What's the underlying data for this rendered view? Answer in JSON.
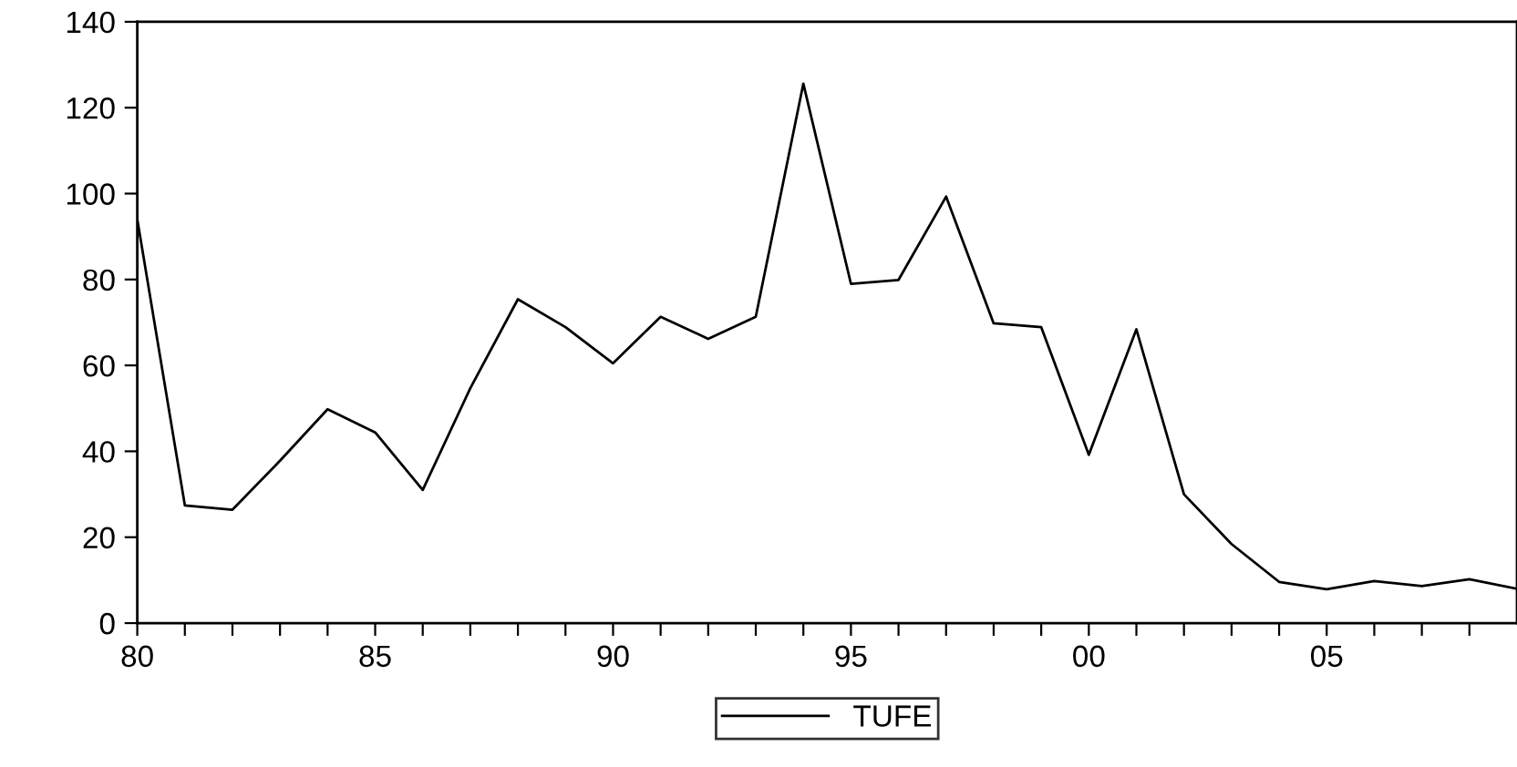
{
  "chart_data": {
    "type": "line",
    "x": [
      1980,
      1981,
      1982,
      1983,
      1984,
      1985,
      1986,
      1987,
      1988,
      1989,
      1990,
      1991,
      1992,
      1993,
      1994,
      1995,
      1996,
      1997,
      1998,
      1999,
      2000,
      2001,
      2002,
      2003,
      2004,
      2005,
      2006,
      2007,
      2008,
      2009
    ],
    "series": [
      {
        "name": "TUFE",
        "color": "#000000",
        "values": [
          94,
          27.4,
          26.4,
          37.8,
          49.8,
          44.4,
          31,
          54.7,
          75.4,
          68.9,
          60.5,
          71.3,
          66.2,
          71.3,
          125.6,
          79,
          79.9,
          99.3,
          69.8,
          68.9,
          39.2,
          68.4,
          30,
          18.4,
          9.6,
          7.9,
          9.8,
          8.6,
          10.2,
          8
        ]
      }
    ],
    "xlim": [
      1980,
      2009
    ],
    "xticks": [
      {
        "value": 1980,
        "label": "80"
      },
      {
        "value": 1981,
        "label": null
      },
      {
        "value": 1982,
        "label": null
      },
      {
        "value": 1983,
        "label": null
      },
      {
        "value": 1984,
        "label": null
      },
      {
        "value": 1985,
        "label": "85"
      },
      {
        "value": 1986,
        "label": null
      },
      {
        "value": 1987,
        "label": null
      },
      {
        "value": 1988,
        "label": null
      },
      {
        "value": 1989,
        "label": null
      },
      {
        "value": 1990,
        "label": "90"
      },
      {
        "value": 1991,
        "label": null
      },
      {
        "value": 1992,
        "label": null
      },
      {
        "value": 1993,
        "label": null
      },
      {
        "value": 1994,
        "label": null
      },
      {
        "value": 1995,
        "label": "95"
      },
      {
        "value": 1996,
        "label": null
      },
      {
        "value": 1997,
        "label": null
      },
      {
        "value": 1998,
        "label": null
      },
      {
        "value": 1999,
        "label": null
      },
      {
        "value": 2000,
        "label": "00"
      },
      {
        "value": 2001,
        "label": null
      },
      {
        "value": 2002,
        "label": null
      },
      {
        "value": 2003,
        "label": null
      },
      {
        "value": 2004,
        "label": null
      },
      {
        "value": 2005,
        "label": "05"
      },
      {
        "value": 2006,
        "label": null
      },
      {
        "value": 2007,
        "label": null
      },
      {
        "value": 2008,
        "label": null
      }
    ],
    "ylim": [
      0,
      140
    ],
    "yticks": [
      0,
      20,
      40,
      60,
      80,
      100,
      120,
      140
    ],
    "grid": false,
    "legend": "bottom",
    "marker": "none",
    "line_style": "solid"
  }
}
